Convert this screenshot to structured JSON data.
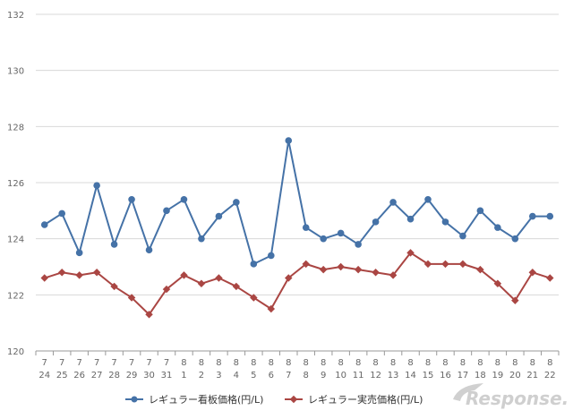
{
  "chart_data": {
    "type": "line",
    "title": "",
    "xlabel": "",
    "ylabel": "",
    "ylim": [
      120,
      132
    ],
    "yticks": [
      120,
      122,
      124,
      126,
      128,
      130,
      132
    ],
    "grid": true,
    "legend_position": "bottom",
    "months": [
      "7",
      "7",
      "7",
      "7",
      "7",
      "7",
      "7",
      "7",
      "8",
      "8",
      "8",
      "8",
      "8",
      "8",
      "8",
      "8",
      "8",
      "8",
      "8",
      "8",
      "8",
      "8",
      "8",
      "8",
      "8",
      "8",
      "8",
      "8",
      "8",
      "8"
    ],
    "days": [
      "24",
      "25",
      "26",
      "27",
      "28",
      "29",
      "30",
      "31",
      "1",
      "2",
      "3",
      "4",
      "5",
      "6",
      "7",
      "8",
      "9",
      "10",
      "11",
      "12",
      "13",
      "14",
      "15",
      "16",
      "17",
      "18",
      "19",
      "20",
      "21",
      "22"
    ],
    "series": [
      {
        "name": "レギュラー看板価格(円/L)",
        "color": "#4572A7",
        "marker": "circle",
        "values": [
          124.5,
          124.9,
          123.5,
          125.9,
          123.8,
          125.4,
          123.6,
          125.0,
          125.4,
          124.0,
          124.8,
          125.3,
          123.1,
          123.4,
          127.5,
          124.4,
          124.0,
          124.2,
          123.8,
          124.6,
          125.3,
          124.7,
          125.4,
          124.6,
          124.1,
          125.0,
          124.4,
          124.0,
          124.8,
          124.8
        ]
      },
      {
        "name": "レギュラー実売価格(円/L)",
        "color": "#AA4643",
        "marker": "diamond",
        "values": [
          122.6,
          122.8,
          122.7,
          122.8,
          122.3,
          121.9,
          121.3,
          122.2,
          122.7,
          122.4,
          122.6,
          122.3,
          121.9,
          121.5,
          122.6,
          123.1,
          122.9,
          123.0,
          122.9,
          122.8,
          122.7,
          123.5,
          123.1,
          123.1,
          123.1,
          122.9,
          122.4,
          121.8,
          122.8,
          122.6
        ]
      }
    ]
  },
  "watermark": "Response."
}
